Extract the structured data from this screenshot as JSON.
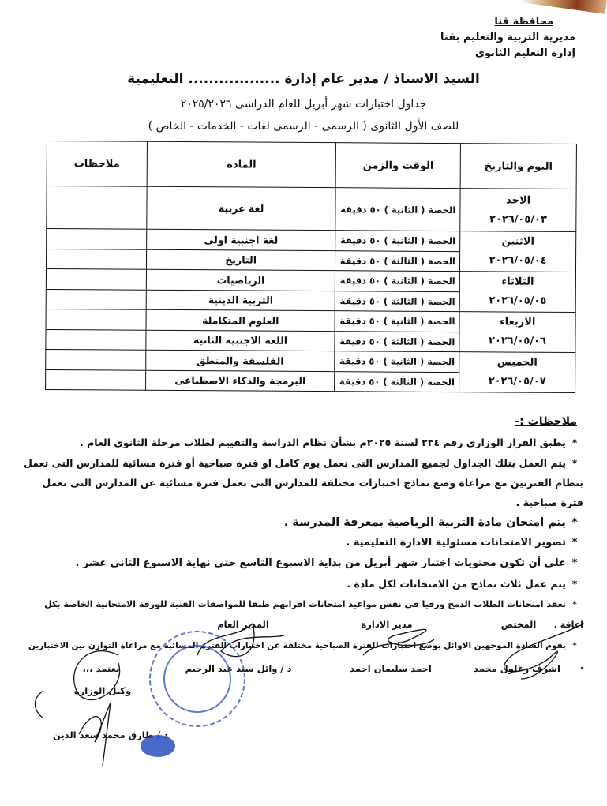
{
  "header": {
    "governorate": "محافظة قنا",
    "directorate": "مديرية التربية والتعليم بقنا",
    "department": "إدارة التعليم الثانوى"
  },
  "addressee": "السيد الاستاذ / مدير عام إدارة .................. التعليمية",
  "title": "جداول اختبارات شهر أبريل للعام الدراسى ٢٠٢٥/٢٠٢٦",
  "subtitle": "للصف الأول الثانوى ( الرسمى - الرسمى لغات - الخدمات - الخاص )",
  "table": {
    "headers": {
      "day": "اليوم والتاريخ",
      "time": "الوقت والزمن",
      "subject": "المادة",
      "notes": "ملاحظات"
    },
    "days": [
      {
        "day": "الاحد",
        "date": "٢٠٢٦/٠٥/٠٣",
        "sessions": [
          {
            "time": "الحصة ( الثانية ) ٥٠ دقيقة",
            "subject": "لغة عربية"
          }
        ]
      },
      {
        "day": "الاثنين",
        "date": "٢٠٢٦/٠٥/٠٤",
        "sessions": [
          {
            "time": "الحصة ( الثانية ) ٥٠ دقيقة",
            "subject": "لغة اجنبية اولى"
          },
          {
            "time": "الحصة ( الثالثة ) ٥٠ دقيقة",
            "subject": "التاريخ"
          }
        ]
      },
      {
        "day": "الثلاثاء",
        "date": "٢٠٢٦/٠٥/٠٥",
        "sessions": [
          {
            "time": "الحصة ( الثانية ) ٥٠ دقيقة",
            "subject": "الرياضيات"
          },
          {
            "time": "الحصة ( الثالثة ) ٥٠ دقيقة",
            "subject": "التربية الدينية"
          }
        ]
      },
      {
        "day": "الاربعاء",
        "date": "٢٠٢٦/٠٥/٠٦",
        "sessions": [
          {
            "time": "الحصة ( الثانية ) ٥٠ دقيقة",
            "subject": "العلوم المتكاملة"
          },
          {
            "time": "الحصة ( الثالثة ) ٥٠ دقيقة",
            "subject": "اللغة الاجنبية الثانية"
          }
        ]
      },
      {
        "day": "الخميس",
        "date": "٢٠٢٦/٠٥/٠٧",
        "sessions": [
          {
            "time": "الحصة ( الثانية ) ٥٠ دقيقة",
            "subject": "الفلسفة والمنطق"
          },
          {
            "time": "الحصة ( الثالثة ) ٥٠ دقيقة",
            "subject": "البرمجة والذكاء الاصطناعى"
          }
        ]
      }
    ]
  },
  "notes": {
    "title": "ملاحظات :-",
    "items": [
      {
        "text": "يطبق القرار الوزارى رقم ٢٣٤ لسنة ٢٠٢٥م بشأن نظام الدراسة والتقييم لطلاب مرحلة الثانوى العام .",
        "size": 12.5
      },
      {
        "text": "يتم العمل بتلك الجداول لجميع المدارس التى تعمل يوم كامل او فترة صباحية أو فترة مسائية للمدارس  التى تعمل بنظام الفترتين مع مراعاة وضع نماذج اختبارات مختلفة للمدارس التى تعمل فترة مسائية عن المدارس التى تعمل فترة صباحية .",
        "size": 12.5
      },
      {
        "text": "يتم امتحان مادة التربية الرياضية بمعرفة المدرسة .",
        "size": 14.5
      },
      {
        "text": "تصوير الامتحانات مسئولية الادارة التعليمية .",
        "size": 13
      },
      {
        "text": "على أن تكون محتويات اختبار شهر أبريل  من بداية الاسبوع التاسع حتى نهاية الاسبوع الثاني عشر .",
        "size": 13
      },
      {
        "text": "يتم عمل ثلاث نماذج من الامتحانات لكل مادة .",
        "size": 12.5
      },
      {
        "text": "تعقد امتحانات الطلاب الدمج ورقيا فى نفس مواعيد امتحانات اقرانهم طبقا للمواصفات الفنية للورقة الامتحانية الخاصة بكل اعاقة .",
        "size": 11
      },
      {
        "text": "يقوم السادة الموجهين الاوائل بوضع اختبارات للفترة الصباحية مختلفة عن اختبارات الفترة المسائية مع مراعاة التوازن بين الاختبارين .",
        "size": 10.5
      }
    ]
  },
  "signatures": {
    "specialist": {
      "role": "المختص",
      "name": "اشرف زغلول محمد"
    },
    "admin_director": {
      "role": "مدير الادارة",
      "name": "احمد سليمان احمد"
    },
    "general_director": {
      "role": "المدير العام",
      "name": "د / وائل سيد عبد الرحيم"
    },
    "approval": "يعتمد ،،،",
    "undersecretary": {
      "role": "وكيل الوزارة",
      "name": "د / طارق محمد سعد الدين"
    }
  },
  "colors": {
    "ink": "#111111",
    "stamp": "#2a4fc0"
  }
}
